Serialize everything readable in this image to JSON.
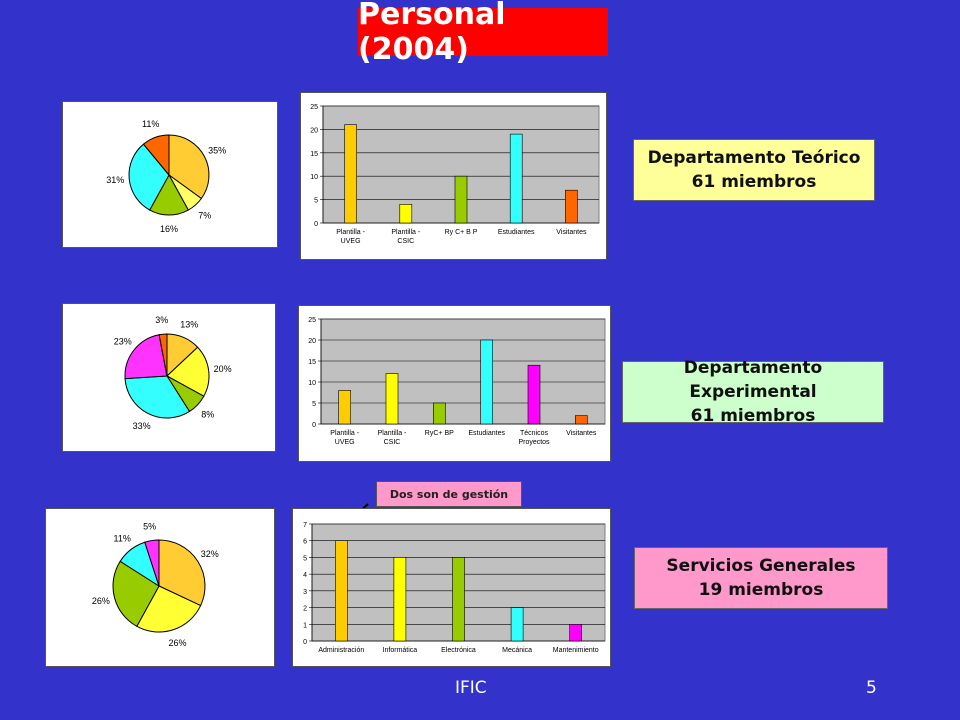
{
  "slide": {
    "title": "Personal (2004)",
    "footer_left": "IFIC",
    "page_number": "5",
    "annotation": "Dos son de gestión"
  },
  "departments": [
    {
      "name": "Departamento Teórico",
      "members": "61 miembros",
      "box_color": "#ffff99"
    },
    {
      "name": "Departamento Experimental",
      "members": "61 miembros",
      "box_color": "#ccffcc"
    },
    {
      "name": "Servicios Generales",
      "members": "19 miembros",
      "box_color": "#ff99cc"
    }
  ],
  "chart_data": [
    {
      "type": "pie",
      "slices": [
        {
          "label": "35%",
          "value": 35,
          "color": "#ffcc33"
        },
        {
          "label": "7%",
          "value": 7,
          "color": "#ffff66"
        },
        {
          "label": "16%",
          "value": 16,
          "color": "#99cc00"
        },
        {
          "label": "31%",
          "value": 31,
          "color": "#33ffff"
        },
        {
          "label": "11%",
          "value": 11,
          "color": "#ff6600"
        }
      ]
    },
    {
      "type": "bar",
      "categories": [
        [
          "Plantilla -",
          "UVEG"
        ],
        [
          "Plantilla -",
          "CSIC"
        ],
        [
          "Ry C+ B P"
        ],
        [
          "Estudiantes"
        ],
        [
          "Visitantes"
        ]
      ],
      "values": [
        21,
        4,
        10,
        19,
        7
      ],
      "colors": [
        "#ffcc00",
        "#ffff00",
        "#99cc00",
        "#33ffff",
        "#ff6600"
      ],
      "ylim": [
        0,
        25
      ],
      "yticks": [
        0,
        5,
        10,
        15,
        20,
        25
      ],
      "grid": true
    },
    {
      "type": "pie",
      "slices": [
        {
          "label": "13%",
          "value": 13,
          "color": "#ffcc33"
        },
        {
          "label": "20%",
          "value": 20,
          "color": "#ffff33"
        },
        {
          "label": "8%",
          "value": 8,
          "color": "#99cc00"
        },
        {
          "label": "33%",
          "value": 33,
          "color": "#33ffff"
        },
        {
          "label": "23%",
          "value": 23,
          "color": "#ff33ff"
        },
        {
          "label": "3%",
          "value": 3,
          "color": "#ff6600"
        }
      ]
    },
    {
      "type": "bar",
      "categories": [
        [
          "Plantilla -",
          "UVEG"
        ],
        [
          "Plantilla -",
          "CSIC"
        ],
        [
          "RyC+ BP"
        ],
        [
          "Estudiantes"
        ],
        [
          "Técnicos",
          "Proyectos"
        ],
        [
          "Visitantes"
        ]
      ],
      "values": [
        8,
        12,
        5,
        20,
        14,
        2
      ],
      "colors": [
        "#ffcc00",
        "#ffff00",
        "#99cc00",
        "#33ffff",
        "#ff00ff",
        "#ff6600"
      ],
      "ylim": [
        0,
        25
      ],
      "yticks": [
        0,
        5,
        10,
        15,
        20,
        25
      ],
      "grid": true
    },
    {
      "type": "pie",
      "slices": [
        {
          "label": "32%",
          "value": 32,
          "color": "#ffcc33"
        },
        {
          "label": "26%",
          "value": 26,
          "color": "#ffff33"
        },
        {
          "label": "26%",
          "value": 26,
          "color": "#99cc00"
        },
        {
          "label": "11%",
          "value": 11,
          "color": "#33ffff"
        },
        {
          "label": "5%",
          "value": 5,
          "color": "#ff33ff"
        }
      ]
    },
    {
      "type": "bar",
      "categories": [
        [
          "Administración"
        ],
        [
          "Informática"
        ],
        [
          "Electrónica"
        ],
        [
          "Mecánica"
        ],
        [
          "Mantenimiento"
        ]
      ],
      "values": [
        6,
        5,
        5,
        2,
        1
      ],
      "colors": [
        "#ffcc00",
        "#ffff00",
        "#99cc00",
        "#33ffff",
        "#ff00ff"
      ],
      "ylim": [
        0,
        7
      ],
      "yticks": [
        0,
        1,
        2,
        3,
        4,
        5,
        6,
        7
      ],
      "grid": true
    }
  ]
}
